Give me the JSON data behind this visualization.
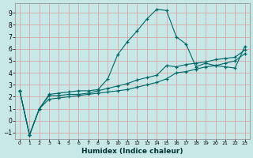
{
  "xlabel": "Humidex (Indice chaleur)",
  "background_color": "#c8e8e8",
  "grid_color": "#d8a8a8",
  "line_color": "#006666",
  "xlim": [
    -0.5,
    23.5
  ],
  "ylim": [
    -1.5,
    9.8
  ],
  "xticks": [
    0,
    1,
    2,
    3,
    4,
    5,
    6,
    7,
    8,
    9,
    10,
    11,
    12,
    13,
    14,
    15,
    16,
    17,
    18,
    19,
    20,
    21,
    22,
    23
  ],
  "yticks": [
    -1,
    0,
    1,
    2,
    3,
    4,
    5,
    6,
    7,
    8,
    9
  ],
  "line1_x": [
    0,
    1,
    2,
    3,
    4,
    5,
    6,
    7,
    8,
    9,
    10,
    11,
    12,
    13,
    14,
    15,
    16,
    17,
    18,
    19,
    20,
    21,
    22,
    23
  ],
  "line1_y": [
    2.5,
    -1.2,
    1.0,
    2.2,
    2.3,
    2.4,
    2.5,
    2.5,
    2.6,
    3.5,
    5.5,
    6.6,
    7.5,
    8.5,
    9.3,
    9.2,
    7.0,
    6.4,
    4.5,
    4.8,
    4.6,
    4.5,
    4.4,
    6.2
  ],
  "line2_x": [
    0,
    1,
    2,
    3,
    4,
    5,
    6,
    7,
    8,
    9,
    10,
    11,
    12,
    13,
    14,
    15,
    16,
    17,
    18,
    19,
    20,
    21,
    22,
    23
  ],
  "line2_y": [
    2.5,
    -1.2,
    1.0,
    2.1,
    2.1,
    2.2,
    2.2,
    2.3,
    2.5,
    2.7,
    2.9,
    3.1,
    3.4,
    3.6,
    3.8,
    4.6,
    4.5,
    4.7,
    4.8,
    4.9,
    5.1,
    5.2,
    5.3,
    5.9
  ],
  "line3_x": [
    0,
    1,
    2,
    3,
    4,
    5,
    6,
    7,
    8,
    9,
    10,
    11,
    12,
    13,
    14,
    15,
    16,
    17,
    18,
    19,
    20,
    21,
    22,
    23
  ],
  "line3_y": [
    2.5,
    -1.2,
    1.0,
    1.8,
    1.9,
    2.0,
    2.1,
    2.2,
    2.3,
    2.4,
    2.5,
    2.6,
    2.8,
    3.0,
    3.2,
    3.5,
    4.0,
    4.1,
    4.3,
    4.5,
    4.6,
    4.8,
    5.0,
    5.6
  ]
}
